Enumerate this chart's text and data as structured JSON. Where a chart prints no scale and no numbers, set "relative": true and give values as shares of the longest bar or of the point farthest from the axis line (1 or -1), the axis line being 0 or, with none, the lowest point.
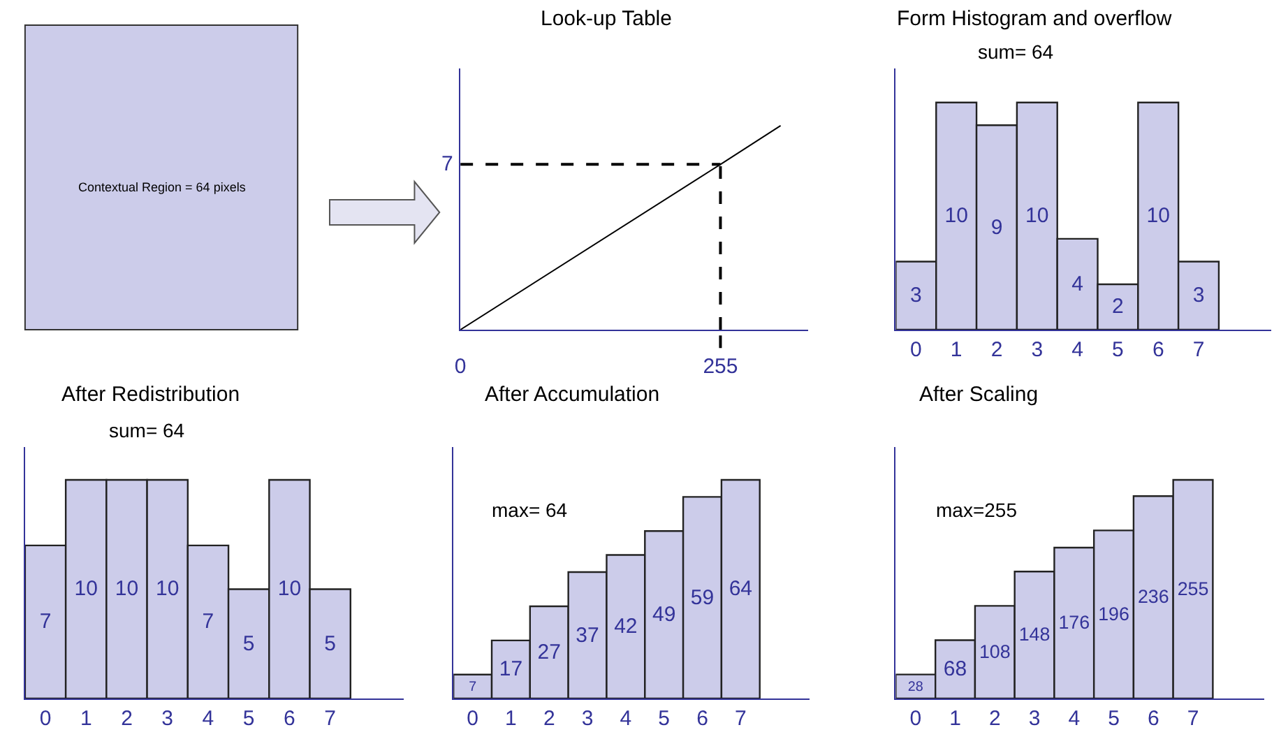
{
  "chart_data": [
    {
      "type": "other",
      "annotations": [
        "Contextual Region = 64 pixels"
      ]
    },
    {
      "type": "line",
      "title": "Look-up Table",
      "relative": true,
      "annotations": [
        "7"
      ],
      "x": [
        0,
        255,
        314
      ],
      "values": [
        0,
        0.81,
        1
      ],
      "color": "#000000",
      "xlim": [
        0,
        341
      ],
      "xticks": [
        0,
        255
      ],
      "ref_lines": [
        {
          "axis": "y",
          "value": 0.81,
          "line_style": "dashed",
          "color": "#000000"
        },
        {
          "axis": "x",
          "value": 255,
          "line_style": "dashed",
          "color": "#000000"
        }
      ]
    },
    {
      "type": "bar",
      "title": "Form Histogram and overflow",
      "annotations": [
        "sum= 64"
      ],
      "categories": [
        "0",
        "1",
        "2",
        "3",
        "4",
        "5",
        "6",
        "7"
      ],
      "values": [
        3,
        10,
        9,
        10,
        4,
        2,
        10,
        3
      ],
      "color": "#ccccea",
      "data_labels": true
    },
    {
      "type": "bar",
      "title": "After Redistribution",
      "annotations": [
        "sum= 64"
      ],
      "categories": [
        "0",
        "1",
        "2",
        "3",
        "4",
        "5",
        "6",
        "7"
      ],
      "values": [
        7,
        10,
        10,
        10,
        7,
        5,
        10,
        5
      ],
      "color": "#ccccea",
      "data_labels": true
    },
    {
      "type": "bar",
      "title": "After Accumulation",
      "annotations": [
        "max= 64"
      ],
      "categories": [
        "0",
        "1",
        "2",
        "3",
        "4",
        "5",
        "6",
        "7"
      ],
      "values": [
        7,
        17,
        27,
        37,
        42,
        49,
        59,
        64
      ],
      "color": "#ccccea",
      "data_labels": true
    },
    {
      "type": "bar",
      "title": "After Scaling",
      "annotations": [
        "max=255"
      ],
      "categories": [
        "0",
        "1",
        "2",
        "3",
        "4",
        "5",
        "6",
        "7"
      ],
      "values": [
        28,
        68,
        108,
        148,
        176,
        196,
        236,
        255
      ],
      "color": "#ccccea",
      "data_labels": true
    }
  ]
}
